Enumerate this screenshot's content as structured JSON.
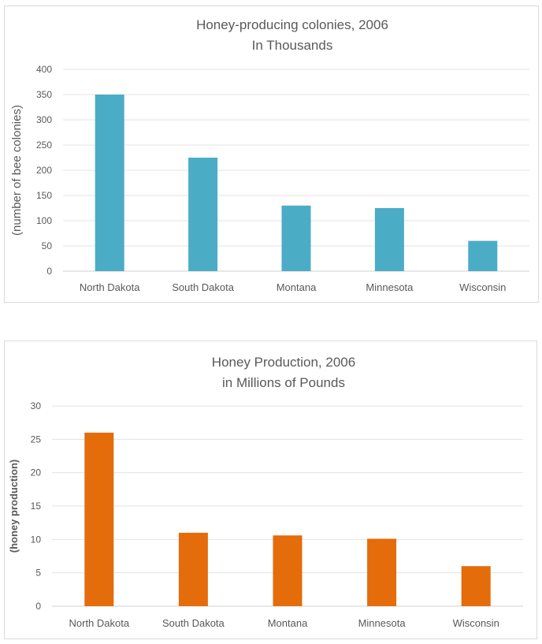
{
  "chart_data": [
    {
      "type": "bar",
      "title": "Honey-producing colonies, 2006",
      "subtitle": "In Thousands",
      "xlabel": "",
      "ylabel": "(number of bee colonies)",
      "categories": [
        "North Dakota",
        "South Dakota",
        "Montana",
        "Minnesota",
        "Wisconsin"
      ],
      "values": [
        350,
        225,
        130,
        125,
        60
      ],
      "ylim": [
        0,
        400
      ],
      "yticks": [
        0,
        50,
        100,
        150,
        200,
        250,
        300,
        350,
        400
      ],
      "grid": true,
      "color": "#4bacc6"
    },
    {
      "type": "bar",
      "title": "Honey Production, 2006",
      "subtitle": "in Millions of Pounds",
      "xlabel": "",
      "ylabel": "(honey production)",
      "categories": [
        "North Dakota",
        "South Dakota",
        "Montana",
        "Minnesota",
        "Wisconsin"
      ],
      "values": [
        26,
        11,
        10.6,
        10.1,
        6
      ],
      "ylim": [
        0,
        30
      ],
      "yticks": [
        0,
        5,
        10,
        15,
        20,
        25,
        30
      ],
      "grid": true,
      "color": "#e46c0a"
    }
  ]
}
